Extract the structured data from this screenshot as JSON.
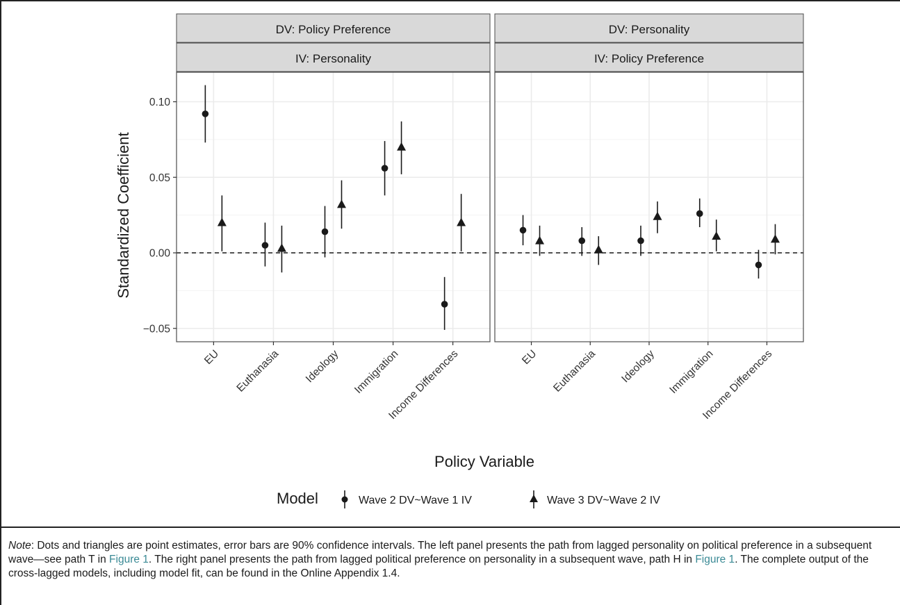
{
  "chart_data": {
    "type": "scatter",
    "subtype": "faceted point estimates with 90% confidence interval error bars",
    "ylabel": "Standardized Coefficient",
    "xlabel": "Policy Variable",
    "categories": [
      "EU",
      "Euthanasia",
      "Ideology",
      "Immigration",
      "Income Differences"
    ],
    "ylim": [
      -0.06,
      0.12
    ],
    "yticks": [
      -0.05,
      0.0,
      0.05,
      0.1
    ],
    "ytick_labels": [
      "−0.05",
      "0.00",
      "0.05",
      "0.10"
    ],
    "reference_line": {
      "y": 0.0,
      "style": "dashed"
    },
    "grid": true,
    "legend": {
      "title": "Model",
      "position": "bottom",
      "entries": [
        {
          "label": "Wave 2 DV~Wave 1 IV",
          "marker": "circle"
        },
        {
          "label": "Wave 3 DV~Wave 2 IV",
          "marker": "triangle"
        }
      ]
    },
    "panels": [
      {
        "strip_top": "DV: Policy Preference",
        "strip_bottom": "IV: Personality",
        "series": [
          {
            "marker": "circle",
            "values": [
              0.092,
              0.005,
              0.014,
              0.056,
              -0.034
            ],
            "lower": [
              0.073,
              -0.009,
              -0.003,
              0.038,
              -0.051
            ],
            "upper": [
              0.111,
              0.02,
              0.031,
              0.074,
              -0.016
            ]
          },
          {
            "marker": "triangle",
            "values": [
              0.02,
              0.003,
              0.032,
              0.07,
              0.02
            ],
            "lower": [
              0.001,
              -0.013,
              0.016,
              0.052,
              0.001
            ],
            "upper": [
              0.038,
              0.018,
              0.048,
              0.087,
              0.039
            ]
          }
        ]
      },
      {
        "strip_top": "DV: Personality",
        "strip_bottom": "IV: Policy Preference",
        "series": [
          {
            "marker": "circle",
            "values": [
              0.015,
              0.008,
              0.008,
              0.026,
              -0.008
            ],
            "lower": [
              0.005,
              -0.002,
              -0.002,
              0.017,
              -0.017
            ],
            "upper": [
              0.025,
              0.017,
              0.018,
              0.036,
              0.002
            ]
          },
          {
            "marker": "triangle",
            "values": [
              0.008,
              0.002,
              0.024,
              0.011,
              0.009
            ],
            "lower": [
              -0.002,
              -0.008,
              0.013,
              0.001,
              -0.001
            ],
            "upper": [
              0.018,
              0.011,
              0.034,
              0.022,
              0.019
            ]
          }
        ]
      }
    ]
  },
  "note": {
    "label": "Note",
    "text_1": ": Dots and triangles are point estimates, error bars are 90% confidence intervals. The left panel presents the path from lagged personality on political preference in a subsequent wave—see path T in ",
    "link_1": "Figure 1",
    "text_2": ". The right panel presents the path from lagged political preference on personality in a subsequent wave, path H in ",
    "link_2": "Figure 1",
    "text_3": ". The complete output of the cross-lagged models, including model fit, can be found in the Online Appendix 1.4."
  },
  "colors": {
    "panel_bg": "#ffffff",
    "strip_bg": "#d9d9d9",
    "strip_border": "#4d4d4d",
    "grid": "#ebebeb",
    "marks": "#1a1a1a",
    "link": "#3a8a95"
  }
}
